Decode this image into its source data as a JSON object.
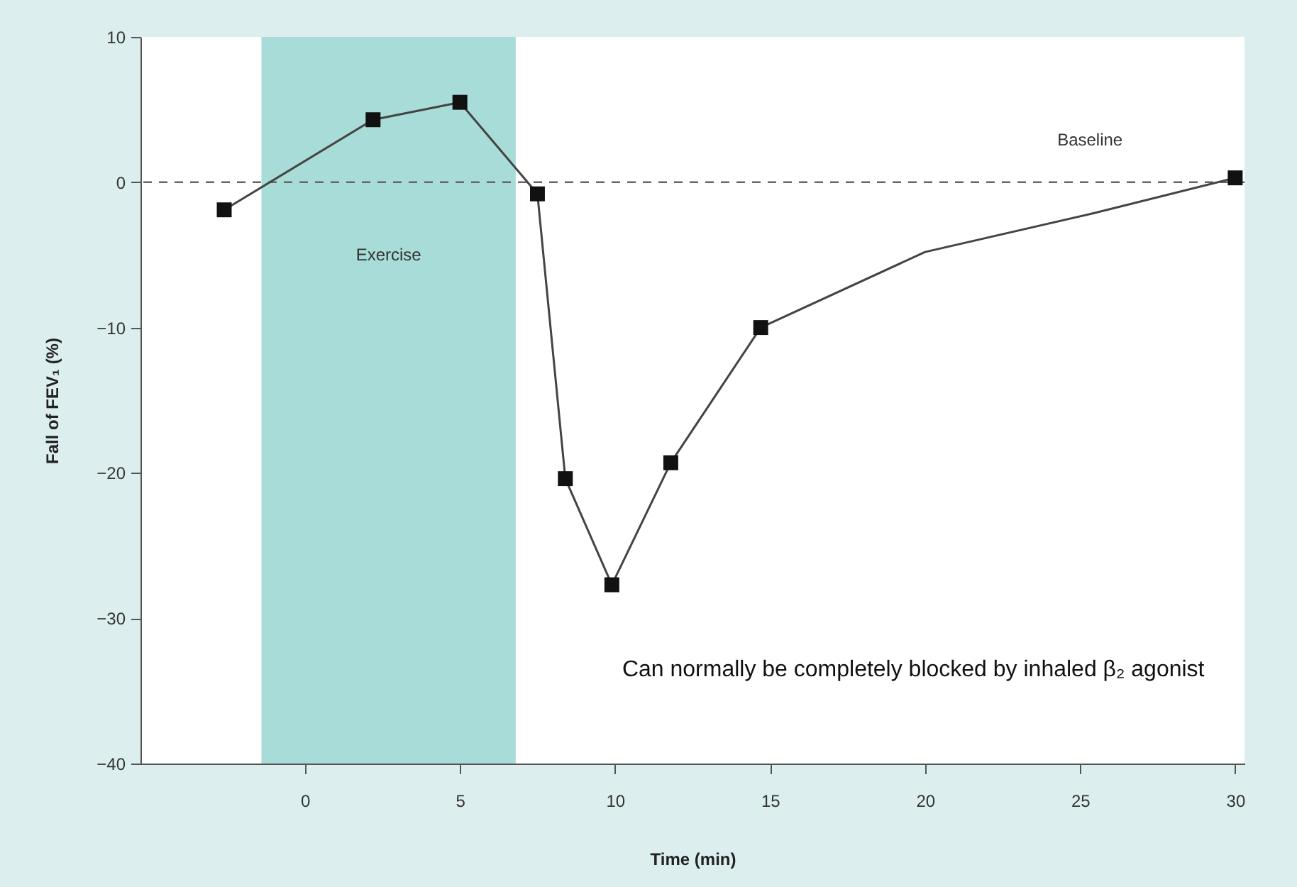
{
  "chart_data": {
    "type": "line",
    "xlabel": "Time (min)",
    "ylabel": "Fall of FEV₁ (%)",
    "xlim": [
      -5.3,
      30.3
    ],
    "xticks": [
      0,
      5,
      10,
      15,
      20,
      25,
      30
    ],
    "ylim": [
      -40,
      10
    ],
    "yticks": [
      -40,
      -30,
      -20,
      -10,
      0,
      10
    ],
    "grid": false,
    "series": [
      {
        "color": "#444444",
        "marker": "none",
        "line_style": "solid",
        "x": [
          -2.6,
          2.2,
          5.0,
          7.5,
          8.4,
          9.9,
          11.8,
          14.7,
          20.0,
          25.5,
          30.0
        ],
        "values": [
          -1.9,
          4.3,
          5.5,
          -0.8,
          -20.4,
          -27.7,
          -19.3,
          -10.0,
          -4.8,
          -2.1,
          0.3
        ]
      },
      {
        "type": "scatter",
        "color": "#111111",
        "marker": "square",
        "x": [
          -2.6,
          2.2,
          5.0,
          7.5,
          8.4,
          9.9,
          11.8,
          14.7,
          30.0
        ],
        "values": [
          -1.9,
          4.3,
          5.5,
          -0.8,
          -20.4,
          -27.7,
          -19.3,
          -10.0,
          0.3
        ]
      }
    ],
    "bands": [
      {
        "axis": "x",
        "from": -1.4,
        "to": 6.8,
        "label": "Exercise",
        "color": "#a8dcd8"
      }
    ],
    "ref_lines": [
      {
        "axis": "y",
        "value": 0,
        "label": "Baseline",
        "color": "#666666",
        "line_style": "dashed"
      }
    ],
    "annotations": [
      "Can normally be completely blocked by inhaled β₂ agonist"
    ]
  }
}
